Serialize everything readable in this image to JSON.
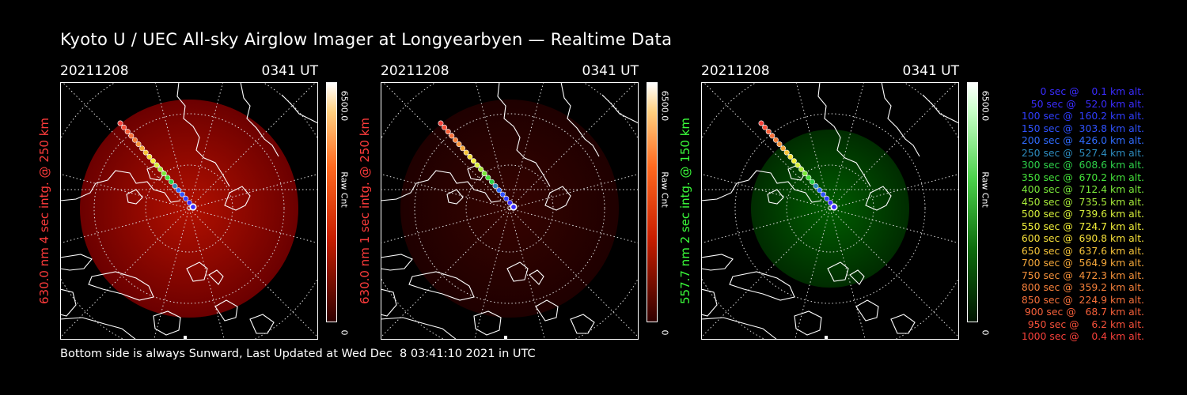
{
  "title": "Kyoto U / UEC All-sky Airglow Imager at Longyearbyen — Realtime Data",
  "footer": "Bottom side is always Sunward, Last Updated at Wed Dec  8 03:41:10 2021 in UTC",
  "panels": [
    {
      "date": "20211208",
      "time": "0341 UT",
      "ylabel": "630.0 nm 4 sec intg. @ 250 km",
      "ylabel_color": "#ff3b3b",
      "cbar_max": "6500.0",
      "cbar_unit": "Raw Cnt",
      "cbar_min": "0",
      "tint": "red",
      "brightness": 0.85
    },
    {
      "date": "20211208",
      "time": "0341 UT",
      "ylabel": "630.0 nm 1 sec intg. @ 250 km",
      "ylabel_color": "#ff3b3b",
      "cbar_max": "6500.0",
      "cbar_unit": "Raw Cnt",
      "cbar_min": "0",
      "tint": "red",
      "brightness": 0.22
    },
    {
      "date": "20211208",
      "time": "0341 UT",
      "ylabel": "557.7 nm 2 sec intg. @ 150 km",
      "ylabel_color": "#3bff3b",
      "cbar_max": "6500.0",
      "cbar_unit": "Raw Cnt",
      "cbar_min": "0",
      "tint": "green",
      "brightness": 0.55
    }
  ],
  "legend": [
    {
      "text": "   0 sec @    0.1 km alt.",
      "color": "#3a2cff"
    },
    {
      "text": "  50 sec @   52.0 km alt.",
      "color": "#3a2cff"
    },
    {
      "text": " 100 sec @  160.2 km alt.",
      "color": "#2f3dff"
    },
    {
      "text": " 150 sec @  303.8 km alt.",
      "color": "#2f52ff"
    },
    {
      "text": " 200 sec @  426.0 km alt.",
      "color": "#2f6cff"
    },
    {
      "text": " 250 sec @  527.4 km alt.",
      "color": "#2d8cbf"
    },
    {
      "text": " 300 sec @  608.6 km alt.",
      "color": "#2ed24a"
    },
    {
      "text": " 350 sec @  670.2 km alt.",
      "color": "#44e23a"
    },
    {
      "text": " 400 sec @  712.4 km alt.",
      "color": "#7ae83a"
    },
    {
      "text": " 450 sec @  735.5 km alt.",
      "color": "#a8ec3a"
    },
    {
      "text": " 500 sec @  739.6 km alt.",
      "color": "#d6ef3a"
    },
    {
      "text": " 550 sec @  724.7 km alt.",
      "color": "#f2f03a"
    },
    {
      "text": " 600 sec @  690.8 km alt.",
      "color": "#f6e03a"
    },
    {
      "text": " 650 sec @  637.6 km alt.",
      "color": "#f6c43a"
    },
    {
      "text": " 700 sec @  564.9 km alt.",
      "color": "#f6a83a"
    },
    {
      "text": " 750 sec @  472.3 km alt.",
      "color": "#f6923a"
    },
    {
      "text": " 800 sec @  359.2 km alt.",
      "color": "#f6803a"
    },
    {
      "text": " 850 sec @  224.9 km alt.",
      "color": "#f6703a"
    },
    {
      "text": " 900 sec @   68.7 km alt.",
      "color": "#f6603a"
    },
    {
      "text": " 950 sec @    6.2 km alt.",
      "color": "#f6503a"
    },
    {
      "text": "1000 sec @    0.4 km alt.",
      "color": "#f6403a"
    }
  ]
}
